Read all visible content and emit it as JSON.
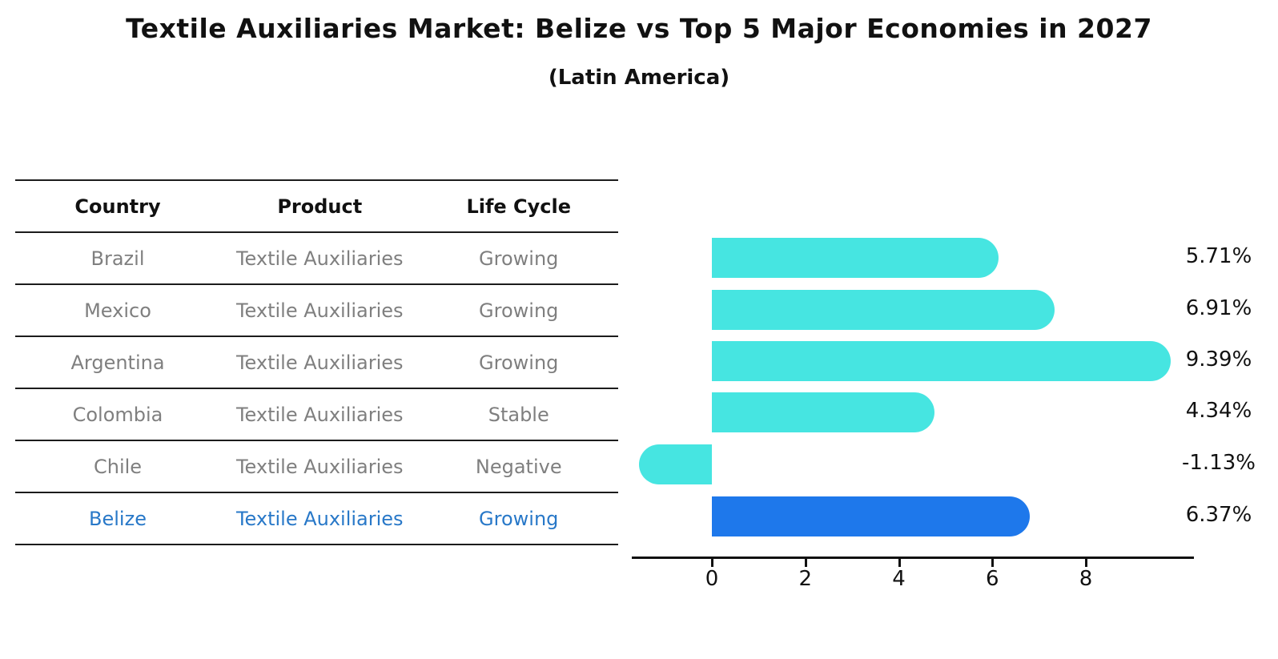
{
  "title": "Textile Auxiliaries Market: Belize vs Top 5 Major Economies in 2027",
  "subtitle": "(Latin America)",
  "table": {
    "headers": [
      "Country",
      "Product",
      "Life Cycle"
    ],
    "rows": [
      {
        "country": "Brazil",
        "product": "Textile Auxiliaries",
        "life_cycle": "Growing",
        "highlighted": false
      },
      {
        "country": "Mexico",
        "product": "Textile Auxiliaries",
        "life_cycle": "Growing",
        "highlighted": false
      },
      {
        "country": "Argentina",
        "product": "Textile Auxiliaries",
        "life_cycle": "Growing",
        "highlighted": false
      },
      {
        "country": "Colombia",
        "product": "Textile Auxiliaries",
        "life_cycle": "Stable",
        "highlighted": false
      },
      {
        "country": "Chile",
        "product": "Textile Auxiliaries",
        "life_cycle": "Negative",
        "highlighted": false
      },
      {
        "country": "Belize",
        "product": "Textile Auxiliaries",
        "life_cycle": "Growing",
        "highlighted": true
      }
    ]
  },
  "chart_data": {
    "type": "bar",
    "orientation": "horizontal",
    "categories": [
      "Brazil",
      "Mexico",
      "Argentina",
      "Colombia",
      "Chile",
      "Belize"
    ],
    "values": [
      5.71,
      6.91,
      9.39,
      4.34,
      -1.13,
      6.37
    ],
    "value_labels": [
      "5.71%",
      "6.91%",
      "9.39%",
      "4.34%",
      "-1.13%",
      "6.37%"
    ],
    "x_ticks": [
      0,
      2,
      4,
      6,
      8
    ],
    "xlim": [
      -1.7,
      10.3
    ],
    "grid": false,
    "legend": false,
    "highlight_index": 5,
    "bar_color": "#46E5E1",
    "highlight_bar_color": "#1E78EB",
    "highlight_text_color": "#2878C8",
    "axis_color": "#111111",
    "text_color": "#111111",
    "muted_text_color": "#7F7F7F"
  }
}
